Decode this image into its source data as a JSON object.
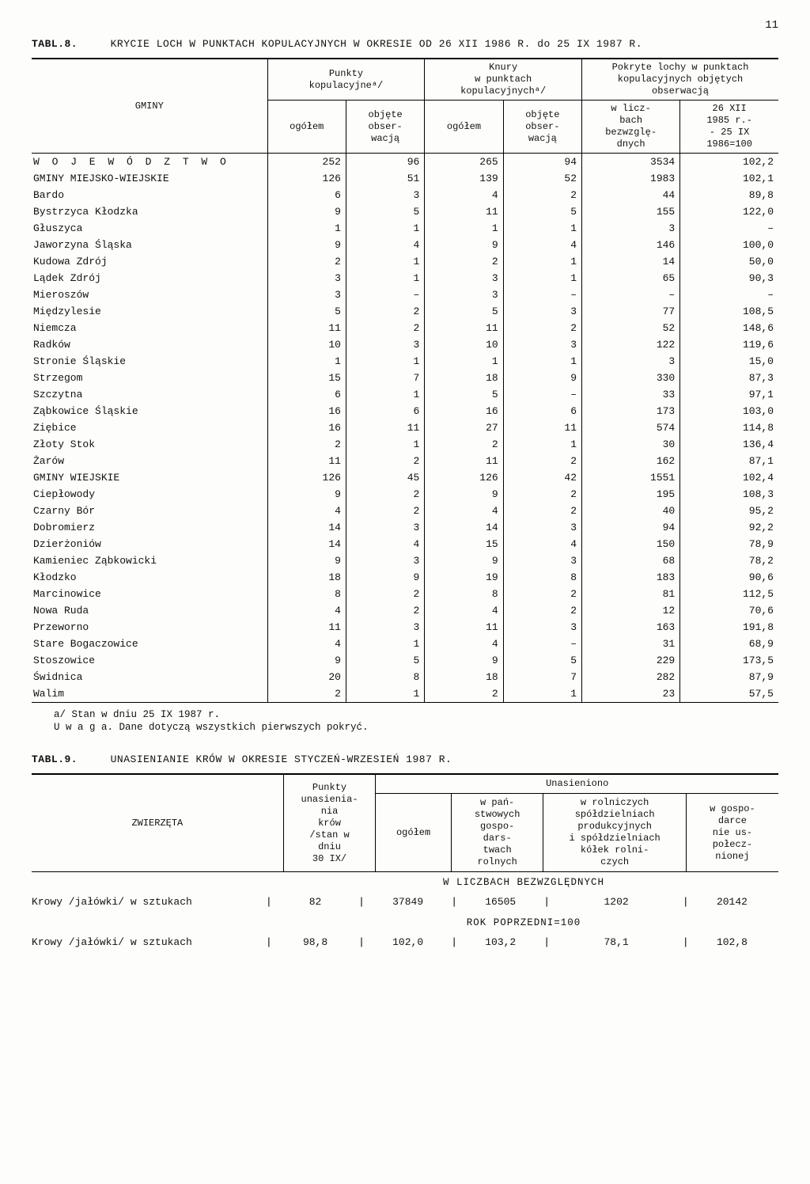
{
  "page_number": "11",
  "table8": {
    "label": "TABL.8.",
    "title": "KRYCIE LOCH W PUNKTACH KOPULACYJNYCH W OKRESIE OD 26 XII 1986 R. do 25 IX 1987 R.",
    "col_gminy": "GMINY",
    "group1": "Punkty\nkopulacyjneᵃ/",
    "group2": "Knury\nw punktach\nkopulacyjnychᵃ/",
    "group3": "Pokryte lochy w punktach kopulacyjnych objętych obserwacją",
    "sub_ogolem": "ogółem",
    "sub_objete": "objęte\nobser-\nwacją",
    "sub_wlicz": "w licz-\nbach\nbezwzglę-\ndnych",
    "sub_index": "26 XII\n1985 r.-\n- 25 IX\n1986=100",
    "rows": [
      {
        "name": "W O J E W Ó D Z T W O",
        "spaced": true,
        "c": [
          "252",
          "96",
          "265",
          "94",
          "3534",
          "102,2"
        ]
      },
      {
        "name": "GMINY MIEJSKO-WIEJSKIE",
        "c": [
          "126",
          "51",
          "139",
          "52",
          "1983",
          "102,1"
        ]
      },
      {
        "name": "Bardo",
        "c": [
          "6",
          "3",
          "4",
          "2",
          "44",
          "89,8"
        ]
      },
      {
        "name": "Bystrzyca Kłodzka",
        "c": [
          "9",
          "5",
          "11",
          "5",
          "155",
          "122,0"
        ]
      },
      {
        "name": "Głuszyca",
        "c": [
          "1",
          "1",
          "1",
          "1",
          "3",
          "–"
        ]
      },
      {
        "name": "Jaworzyna Śląska",
        "c": [
          "9",
          "4",
          "9",
          "4",
          "146",
          "100,0"
        ]
      },
      {
        "name": "Kudowa Zdrój",
        "c": [
          "2",
          "1",
          "2",
          "1",
          "14",
          "50,0"
        ]
      },
      {
        "name": "Lądek Zdrój",
        "c": [
          "3",
          "1",
          "3",
          "1",
          "65",
          "90,3"
        ]
      },
      {
        "name": "Mieroszów",
        "c": [
          "3",
          "–",
          "3",
          "–",
          "–",
          "–"
        ]
      },
      {
        "name": "Międzylesie",
        "c": [
          "5",
          "2",
          "5",
          "3",
          "77",
          "108,5"
        ]
      },
      {
        "name": "Niemcza",
        "c": [
          "11",
          "2",
          "11",
          "2",
          "52",
          "148,6"
        ]
      },
      {
        "name": "Radków",
        "c": [
          "10",
          "3",
          "10",
          "3",
          "122",
          "119,6"
        ]
      },
      {
        "name": "Stronie Śląskie",
        "c": [
          "1",
          "1",
          "1",
          "1",
          "3",
          "15,0"
        ]
      },
      {
        "name": "Strzegom",
        "c": [
          "15",
          "7",
          "18",
          "9",
          "330",
          "87,3"
        ]
      },
      {
        "name": "Szczytna",
        "c": [
          "6",
          "1",
          "5",
          "–",
          "33",
          "97,1"
        ]
      },
      {
        "name": "Ząbkowice Śląskie",
        "c": [
          "16",
          "6",
          "16",
          "6",
          "173",
          "103,0"
        ]
      },
      {
        "name": "Ziębice",
        "c": [
          "16",
          "11",
          "27",
          "11",
          "574",
          "114,8"
        ]
      },
      {
        "name": "Złoty Stok",
        "c": [
          "2",
          "1",
          "2",
          "1",
          "30",
          "136,4"
        ]
      },
      {
        "name": "Żarów",
        "c": [
          "11",
          "2",
          "11",
          "2",
          "162",
          "87,1"
        ]
      },
      {
        "name": "GMINY WIEJSKIE",
        "c": [
          "126",
          "45",
          "126",
          "42",
          "1551",
          "102,4"
        ]
      },
      {
        "name": "Ciepłowody",
        "c": [
          "9",
          "2",
          "9",
          "2",
          "195",
          "108,3"
        ]
      },
      {
        "name": "Czarny Bór",
        "c": [
          "4",
          "2",
          "4",
          "2",
          "40",
          "95,2"
        ]
      },
      {
        "name": "Dobromierz",
        "c": [
          "14",
          "3",
          "14",
          "3",
          "94",
          "92,2"
        ]
      },
      {
        "name": "Dzierżoniów",
        "c": [
          "14",
          "4",
          "15",
          "4",
          "150",
          "78,9"
        ]
      },
      {
        "name": "Kamieniec Ząbkowicki",
        "c": [
          "9",
          "3",
          "9",
          "3",
          "68",
          "78,2"
        ]
      },
      {
        "name": "Kłodzko",
        "c": [
          "18",
          "9",
          "19",
          "8",
          "183",
          "90,6"
        ]
      },
      {
        "name": "Marcinowice",
        "c": [
          "8",
          "2",
          "8",
          "2",
          "81",
          "112,5"
        ]
      },
      {
        "name": "Nowa Ruda",
        "c": [
          "4",
          "2",
          "4",
          "2",
          "12",
          "70,6"
        ]
      },
      {
        "name": "Przeworno",
        "c": [
          "11",
          "3",
          "11",
          "3",
          "163",
          "191,8"
        ]
      },
      {
        "name": "Stare Bogaczowice",
        "c": [
          "4",
          "1",
          "4",
          "–",
          "31",
          "68,9"
        ]
      },
      {
        "name": "Stoszowice",
        "c": [
          "9",
          "5",
          "9",
          "5",
          "229",
          "173,5"
        ]
      },
      {
        "name": "Świdnica",
        "c": [
          "20",
          "8",
          "18",
          "7",
          "282",
          "87,9"
        ]
      },
      {
        "name": "Walim",
        "c": [
          "2",
          "1",
          "2",
          "1",
          "23",
          "57,5"
        ]
      }
    ],
    "footnote_a": "a/ Stan w dniu 25 IX 1987 r.",
    "footnote_b": "U w a g a. Dane dotyczą wszystkich pierwszych pokryć."
  },
  "table9": {
    "label": "TABL.9.",
    "title": "UNASIENIANIE KRÓW W OKRESIE STYCZEŃ-WRZESIEŃ 1987 R.",
    "col_zwierzeta": "ZWIERZĘTA",
    "col_punkty": "Punkty\nunasienia-\nnia\nkrów\n/stan w\ndniu\n30 IX/",
    "col_unasieniono": "Unasieniono",
    "col_ogolem": "ogółem",
    "col_panstw": "w pań-\nstwowych\ngospo-\ndars-\ntwach\nrolnych",
    "col_spol": "w rolniczych\nspółdzielniach\nprodukcyjnych\ni spółdzielniach\nkółek rolni-\nczych",
    "col_gosp": "w gospo-\ndarce\nnie us-\npołecz-\nnionej",
    "sub1": "W LICZBACH BEZWZGLĘDNYCH",
    "row1_label": "Krowy /jałówki/ w sztukach",
    "row1": [
      "82",
      "37849",
      "16505",
      "1202",
      "20142"
    ],
    "sub2": "ROK POPRZEDNI=100",
    "row2_label": "Krowy /jałówki/ w sztukach",
    "row2": [
      "98,8",
      "102,0",
      "103,2",
      "78,1",
      "102,8"
    ]
  }
}
